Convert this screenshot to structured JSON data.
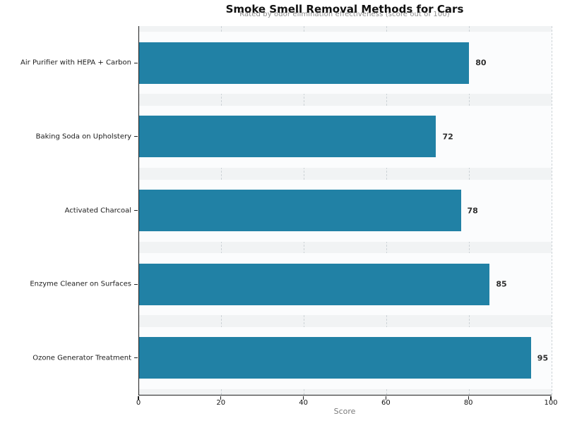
{
  "chart_data": {
    "type": "bar",
    "orientation": "horizontal",
    "title": "Smoke Smell Removal Methods for Cars",
    "subtitle": "Rated by odor elimination effectiveness (score out of 100)",
    "categories": [
      "Air Purifier with HEPA + Carbon",
      "Baking Soda on Upholstery",
      "Activated Charcoal",
      "Enzyme Cleaner on Surfaces",
      "Ozone Generator Treatment"
    ],
    "values": [
      80,
      72,
      78,
      85,
      95
    ],
    "value_labels": [
      "80",
      "72",
      "78",
      "85",
      "95"
    ],
    "xlabel": "Score",
    "ylabel": "",
    "xlim": [
      0,
      100
    ],
    "xticks": [
      0,
      20,
      40,
      60,
      80,
      100
    ],
    "grid": "vertical-dashed",
    "legend": "none",
    "colors": {
      "bar": "#2181a5",
      "plot_background": "#f1f3f4",
      "row_band": "#fbfcfd",
      "gridline": "#cdd3d7",
      "spine": "#1f1f1f",
      "title_text": "#111111",
      "subtitle_text": "#8e8e8e",
      "value_label_text": "#2e2e2e",
      "axis_label_text": "#7a7a7a"
    }
  }
}
